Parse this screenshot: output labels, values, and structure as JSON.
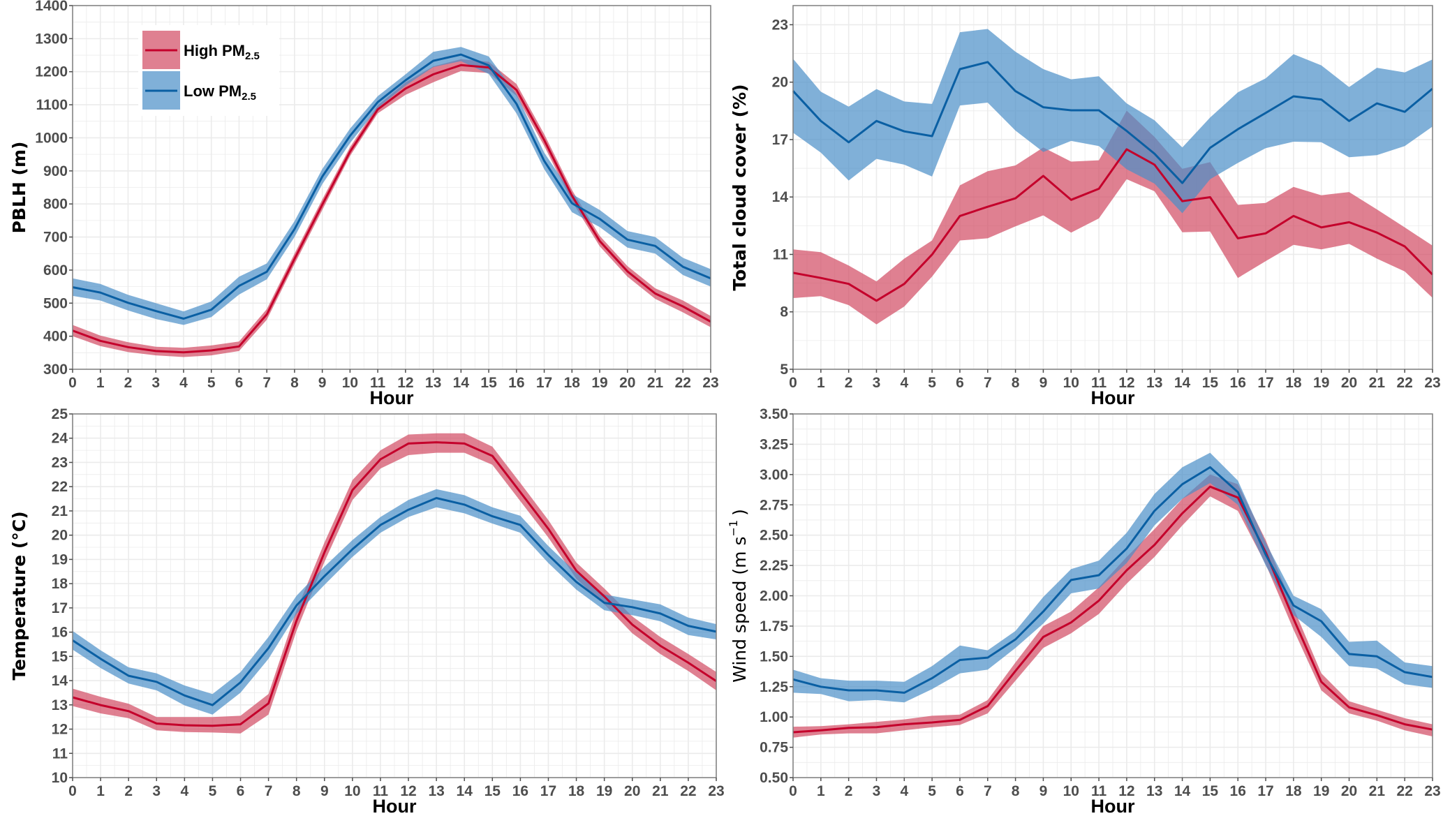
{
  "colors": {
    "high_line": "#c4002b",
    "high_fill": "#d24a62",
    "low_line": "#0a5fa3",
    "low_fill": "#4a8fc7",
    "grid": "#ebebeb",
    "axis": "#4d4d4d"
  },
  "legend": {
    "high": {
      "label": "High PM",
      "sub": "2.5"
    },
    "low": {
      "label": "Low PM",
      "sub": "2.5"
    }
  },
  "chart_data": [
    {
      "type": "line",
      "title": "",
      "xlabel": "Hour",
      "ylabel": "PBLH (m)",
      "x": [
        0,
        1,
        2,
        3,
        4,
        5,
        6,
        7,
        8,
        9,
        10,
        11,
        12,
        13,
        14,
        15,
        16,
        17,
        18,
        19,
        20,
        21,
        22,
        23
      ],
      "ylim": [
        300,
        1400
      ],
      "yticks": [
        "300",
        "400",
        "500",
        "600",
        "700",
        "800",
        "900",
        "1000",
        "1100",
        "1200",
        "1300",
        "1400"
      ],
      "ytick_values": [
        300,
        400,
        500,
        600,
        700,
        800,
        900,
        1000,
        1100,
        1200,
        1300,
        1400
      ],
      "grid": true,
      "legend_position": "top-left",
      "series": [
        {
          "name": "High PM2.5",
          "values": [
            417,
            386,
            367,
            355,
            351,
            357,
            369,
            466,
            634,
            798,
            958,
            1086,
            1149,
            1192,
            1220,
            1213,
            1145,
            993,
            825,
            688,
            596,
            529,
            490,
            444
          ],
          "lower": [
            400,
            370,
            352,
            342,
            337,
            342,
            355,
            450,
            618,
            782,
            945,
            1074,
            1130,
            1168,
            1202,
            1196,
            1127,
            975,
            808,
            672,
            580,
            513,
            472,
            427
          ],
          "upper": [
            434,
            402,
            382,
            368,
            365,
            372,
            384,
            482,
            650,
            814,
            972,
            1098,
            1168,
            1216,
            1238,
            1230,
            1163,
            1011,
            842,
            704,
            612,
            545,
            508,
            461
          ]
        },
        {
          "name": "Low PM2.5",
          "values": [
            548,
            532,
            501,
            476,
            453,
            480,
            552,
            595,
            724,
            883,
            1006,
            1108,
            1174,
            1233,
            1252,
            1219,
            1103,
            930,
            802,
            755,
            692,
            673,
            610,
            575
          ],
          "lower": [
            522,
            508,
            478,
            452,
            434,
            458,
            526,
            572,
            700,
            860,
            984,
            1090,
            1158,
            1214,
            1232,
            1193,
            1074,
            905,
            775,
            730,
            668,
            650,
            585,
            550
          ],
          "upper": [
            575,
            558,
            525,
            500,
            475,
            505,
            580,
            620,
            748,
            906,
            1028,
            1126,
            1192,
            1260,
            1275,
            1246,
            1132,
            955,
            830,
            782,
            718,
            700,
            637,
            603
          ]
        }
      ]
    },
    {
      "type": "line",
      "title": "",
      "xlabel": "Hour",
      "ylabel": "Total cloud cover (%)",
      "x": [
        0,
        1,
        2,
        3,
        4,
        5,
        6,
        7,
        8,
        9,
        10,
        11,
        12,
        13,
        14,
        15,
        16,
        17,
        18,
        19,
        20,
        21,
        22,
        23
      ],
      "ylim": [
        5,
        24
      ],
      "yticks": [
        "5",
        "8",
        "11",
        "14",
        "17",
        "20",
        "23"
      ],
      "ytick_values": [
        5,
        8,
        11,
        14,
        17,
        20,
        23
      ],
      "grid": true,
      "series": [
        {
          "name": "High PM2.5",
          "values": [
            10.04,
            9.77,
            9.46,
            8.58,
            9.46,
            10.99,
            13.01,
            13.49,
            13.93,
            15.1,
            13.85,
            14.43,
            16.49,
            15.69,
            13.78,
            13.99,
            11.84,
            12.1,
            13.01,
            12.41,
            12.68,
            12.14,
            11.42,
            9.95
          ],
          "lower": [
            8.72,
            8.82,
            8.35,
            7.34,
            8.28,
            9.84,
            11.73,
            11.84,
            12.47,
            13.04,
            12.14,
            12.88,
            14.93,
            14.3,
            12.16,
            12.2,
            9.77,
            10.65,
            11.5,
            11.26,
            11.55,
            10.78,
            10.11,
            8.73
          ],
          "upper": [
            11.26,
            11.12,
            10.42,
            9.59,
            10.78,
            11.73,
            14.61,
            15.35,
            15.65,
            16.59,
            15.85,
            15.92,
            18.51,
            17.14,
            15.47,
            15.82,
            13.59,
            13.69,
            14.53,
            14.09,
            14.26,
            13.35,
            12.41,
            11.46
          ]
        },
        {
          "name": "Low PM2.5",
          "values": [
            19.54,
            17.97,
            16.86,
            17.97,
            17.43,
            17.18,
            20.68,
            21.05,
            19.53,
            18.69,
            18.53,
            18.53,
            17.45,
            16.26,
            14.73,
            16.57,
            17.54,
            18.39,
            19.26,
            19.09,
            17.97,
            18.89,
            18.45,
            19.66
          ],
          "lower": [
            17.36,
            16.32,
            14.86,
            15.99,
            15.69,
            15.07,
            18.78,
            18.93,
            17.47,
            16.35,
            16.93,
            16.66,
            15.45,
            14.7,
            13.15,
            14.93,
            15.78,
            16.55,
            16.89,
            16.86,
            16.08,
            16.19,
            16.66,
            17.68
          ],
          "upper": [
            21.22,
            19.5,
            18.72,
            19.64,
            18.99,
            18.86,
            22.61,
            22.78,
            21.59,
            20.68,
            20.15,
            20.31,
            18.89,
            18.01,
            16.59,
            18.15,
            19.47,
            20.2,
            21.46,
            20.88,
            19.74,
            20.75,
            20.51,
            21.19
          ]
        }
      ]
    },
    {
      "type": "line",
      "title": "",
      "xlabel": "Hour",
      "ylabel": "Temperature (°C)",
      "x": [
        0,
        1,
        2,
        3,
        4,
        5,
        6,
        7,
        8,
        9,
        10,
        11,
        12,
        13,
        14,
        15,
        16,
        17,
        18,
        19,
        20,
        21,
        22,
        23
      ],
      "ylim": [
        10,
        25
      ],
      "yticks": [
        "10",
        "11",
        "12",
        "13",
        "14",
        "15",
        "16",
        "17",
        "18",
        "19",
        "20",
        "21",
        "22",
        "23",
        "24",
        "25"
      ],
      "ytick_values": [
        10,
        11,
        12,
        13,
        14,
        15,
        16,
        17,
        18,
        19,
        20,
        21,
        22,
        23,
        24,
        25
      ],
      "grid": true,
      "series": [
        {
          "name": "High PM2.5",
          "values": [
            13.31,
            12.99,
            12.74,
            12.23,
            12.16,
            12.14,
            12.2,
            13.06,
            16.47,
            19.29,
            21.86,
            23.13,
            23.78,
            23.83,
            23.78,
            23.27,
            21.77,
            20.26,
            18.53,
            17.47,
            16.31,
            15.44,
            14.74,
            13.98
          ],
          "lower": [
            12.95,
            12.65,
            12.45,
            11.95,
            11.88,
            11.86,
            11.82,
            12.6,
            16.05,
            18.9,
            21.45,
            22.75,
            23.3,
            23.4,
            23.4,
            22.9,
            21.4,
            19.9,
            18.2,
            17.15,
            15.95,
            15.1,
            14.4,
            13.6
          ],
          "upper": [
            13.67,
            13.33,
            13.05,
            12.5,
            12.5,
            12.5,
            12.55,
            13.45,
            16.9,
            19.7,
            22.27,
            23.5,
            24.15,
            24.2,
            24.2,
            23.65,
            22.15,
            20.62,
            18.87,
            17.8,
            16.65,
            15.8,
            15.1,
            14.36
          ]
        },
        {
          "name": "Low PM2.5",
          "values": [
            15.66,
            14.9,
            14.2,
            13.95,
            13.39,
            12.99,
            13.93,
            15.34,
            17.1,
            18.31,
            19.42,
            20.42,
            21.05,
            21.53,
            21.26,
            20.78,
            20.42,
            19.18,
            18.07,
            17.21,
            17.03,
            16.77,
            16.26,
            16.02
          ],
          "lower": [
            15.28,
            14.52,
            13.88,
            13.6,
            12.98,
            12.6,
            13.5,
            14.9,
            16.75,
            17.95,
            19.1,
            20.1,
            20.75,
            21.15,
            20.9,
            20.48,
            20.1,
            18.85,
            17.75,
            16.9,
            16.7,
            16.45,
            15.88,
            15.7
          ],
          "upper": [
            16.05,
            15.25,
            14.55,
            14.3,
            13.8,
            13.45,
            14.35,
            15.8,
            17.5,
            18.7,
            19.8,
            20.75,
            21.45,
            21.9,
            21.65,
            21.15,
            20.8,
            19.55,
            18.45,
            17.55,
            17.35,
            17.15,
            16.6,
            16.33
          ]
        }
      ]
    },
    {
      "type": "line",
      "title": "",
      "xlabel": "Hour",
      "ylabel": "Wind speed (m s",
      "ylabel_sup": "−1",
      "ylabel_end": ")",
      "x": [
        0,
        1,
        2,
        3,
        4,
        5,
        6,
        7,
        8,
        9,
        10,
        11,
        12,
        13,
        14,
        15,
        16,
        17,
        18,
        19,
        20,
        21,
        22,
        23
      ],
      "ylim": [
        0.5,
        3.5
      ],
      "yticks": [
        "0.50",
        "0.75",
        "1.00",
        "1.25",
        "1.50",
        "1.75",
        "2.00",
        "2.25",
        "2.50",
        "2.75",
        "3.00",
        "3.25",
        "3.50"
      ],
      "ytick_values": [
        0.5,
        0.75,
        1.0,
        1.25,
        1.5,
        1.75,
        2.0,
        2.25,
        2.5,
        2.75,
        3.0,
        3.25,
        3.5
      ],
      "grid": true,
      "series": [
        {
          "name": "High PM2.5",
          "values": [
            0.874,
            0.89,
            0.91,
            0.916,
            0.94,
            0.955,
            0.976,
            1.09,
            1.38,
            1.66,
            1.78,
            1.96,
            2.21,
            2.42,
            2.68,
            2.9,
            2.81,
            2.36,
            1.81,
            1.29,
            1.08,
            1.015,
            0.94,
            0.896
          ],
          "lower": [
            0.83,
            0.855,
            0.865,
            0.865,
            0.89,
            0.915,
            0.935,
            1.03,
            1.3,
            1.57,
            1.69,
            1.85,
            2.1,
            2.32,
            2.58,
            2.82,
            2.7,
            2.26,
            1.72,
            1.22,
            1.03,
            0.97,
            0.89,
            0.84
          ],
          "upper": [
            0.92,
            0.925,
            0.94,
            0.96,
            0.98,
            1.01,
            1.02,
            1.14,
            1.45,
            1.75,
            1.87,
            2.07,
            2.32,
            2.55,
            2.8,
            3.0,
            2.92,
            2.46,
            1.9,
            1.36,
            1.13,
            1.06,
            0.99,
            0.94
          ]
        },
        {
          "name": "Low PM2.5",
          "values": [
            1.31,
            1.25,
            1.22,
            1.22,
            1.2,
            1.32,
            1.47,
            1.49,
            1.64,
            1.87,
            2.13,
            2.17,
            2.39,
            2.7,
            2.92,
            3.06,
            2.855,
            2.34,
            1.92,
            1.79,
            1.52,
            1.5,
            1.37,
            1.33
          ],
          "lower": [
            1.2,
            1.19,
            1.13,
            1.14,
            1.12,
            1.23,
            1.36,
            1.39,
            1.57,
            1.77,
            2.02,
            2.06,
            2.27,
            2.58,
            2.8,
            2.93,
            2.75,
            2.25,
            1.84,
            1.66,
            1.42,
            1.4,
            1.27,
            1.24
          ],
          "upper": [
            1.39,
            1.32,
            1.3,
            1.3,
            1.29,
            1.42,
            1.59,
            1.55,
            1.71,
            1.99,
            2.22,
            2.29,
            2.52,
            2.84,
            3.06,
            3.18,
            2.95,
            2.44,
            2.0,
            1.89,
            1.62,
            1.63,
            1.45,
            1.42
          ]
        }
      ]
    }
  ]
}
